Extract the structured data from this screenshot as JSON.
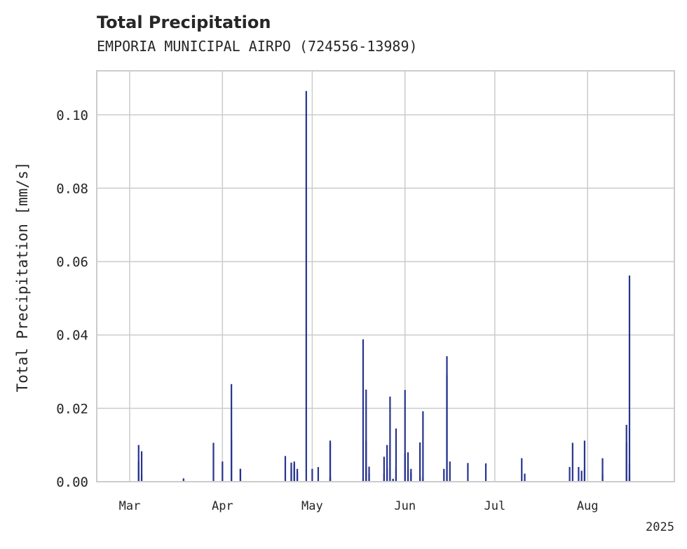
{
  "chart_data": {
    "type": "bar",
    "title": "Total Precipitation",
    "subtitle": "EMPORIA MUNICIPAL AIRPO (724556-13989)",
    "ylabel": "Total Precipitation [mm/s]",
    "xlabel": "",
    "year_label": "2025",
    "ylim": [
      0,
      0.112
    ],
    "xlim": [
      "2025-02-18",
      "2025-08-30"
    ],
    "yticks": [
      0.0,
      0.02,
      0.04,
      0.06,
      0.08,
      0.1
    ],
    "ytick_labels": [
      "0.00",
      "0.02",
      "0.04",
      "0.06",
      "0.08",
      "0.10"
    ],
    "xticks": [
      "2025-03-01",
      "2025-04-01",
      "2025-05-01",
      "2025-06-01",
      "2025-07-01",
      "2025-08-01"
    ],
    "xtick_labels": [
      "Mar",
      "Apr",
      "May",
      "Jun",
      "Jul",
      "Aug"
    ],
    "grid": true,
    "bar_color": "#26348f",
    "series": [
      {
        "x": [
          "2025-03-04",
          "2025-03-04",
          "2025-03-05",
          "2025-03-05",
          "2025-03-19",
          "2025-03-29",
          "2025-04-01",
          "2025-04-04",
          "2025-04-04",
          "2025-04-07",
          "2025-04-07",
          "2025-04-22",
          "2025-04-24",
          "2025-04-24",
          "2025-04-25",
          "2025-04-25",
          "2025-04-26",
          "2025-04-26",
          "2025-04-29",
          "2025-05-01",
          "2025-05-03",
          "2025-05-07",
          "2025-05-07",
          "2025-05-07",
          "2025-05-07",
          "2025-05-18",
          "2025-05-18",
          "2025-05-19",
          "2025-05-19",
          "2025-05-19",
          "2025-05-20",
          "2025-05-20",
          "2025-05-25",
          "2025-05-25",
          "2025-05-26",
          "2025-05-26",
          "2025-05-27",
          "2025-05-27",
          "2025-05-28",
          "2025-05-28",
          "2025-05-29",
          "2025-05-29",
          "2025-06-01",
          "2025-06-01",
          "2025-06-02",
          "2025-06-02",
          "2025-06-03",
          "2025-06-03",
          "2025-06-06",
          "2025-06-06",
          "2025-06-07",
          "2025-06-07",
          "2025-06-14",
          "2025-06-15",
          "2025-06-15",
          "2025-06-16",
          "2025-06-22",
          "2025-06-28",
          "2025-07-10",
          "2025-07-11",
          "2025-07-26",
          "2025-07-27",
          "2025-07-29",
          "2025-07-30",
          "2025-07-31",
          "2025-07-31",
          "2025-08-06",
          "2025-08-06",
          "2025-08-14",
          "2025-08-14",
          "2025-08-15",
          "2025-08-15",
          "2025-08-15"
        ],
        "values": [
          0.0055,
          0.01,
          0.0083,
          0.002,
          0.0009,
          0.0106,
          0.0055,
          0.0115,
          0.0266,
          0.0035,
          0.0035,
          0.007,
          0.0052,
          0.0035,
          0.0055,
          0.0048,
          0.0035,
          0.0025,
          0.1065,
          0.0035,
          0.004,
          0.0012,
          0.0105,
          0.0112,
          0.0012,
          0.0008,
          0.0388,
          0.0035,
          0.0112,
          0.0251,
          0.0041,
          0.0022,
          0.0022,
          0.0068,
          0.01,
          0.0036,
          0.0232,
          0.01,
          0.0007,
          0.0008,
          0.0036,
          0.0145,
          0.0077,
          0.025,
          0.008,
          0.0035,
          0.0035,
          0.0025,
          0.0107,
          0.0015,
          0.0192,
          0.001,
          0.0035,
          0.029,
          0.0342,
          0.0055,
          0.0051,
          0.005,
          0.0064,
          0.0022,
          0.004,
          0.0106,
          0.004,
          0.003,
          0.0112,
          0.0035,
          0.002,
          0.0064,
          0.0155,
          0.0107,
          0.0562,
          0.005,
          0.0015
        ]
      }
    ]
  }
}
